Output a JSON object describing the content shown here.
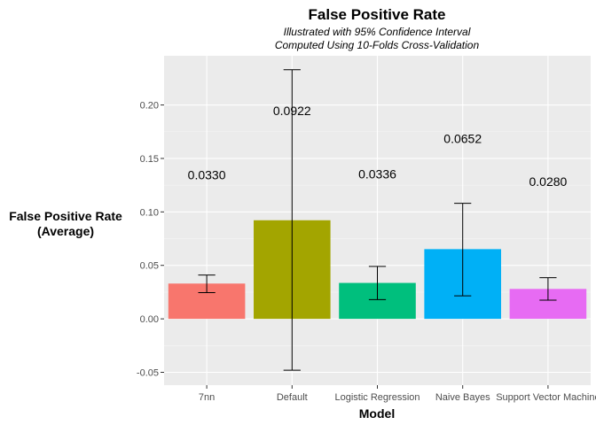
{
  "chart_data": {
    "type": "bar",
    "title": "False Positive Rate",
    "subtitle": [
      "Illustrated with 95% Confidence Interval",
      "Computed Using 10-Folds Cross-Validation"
    ],
    "xlabel": "Model",
    "ylabel": [
      "False Positive Rate",
      "(Average)"
    ],
    "categories": [
      "7nn",
      "Default",
      "Logistic Regression",
      "Naive Bayes",
      "Support Vector Machine"
    ],
    "values": [
      0.033,
      0.0922,
      0.0336,
      0.0652,
      0.028
    ],
    "value_labels": [
      "0.0330",
      "0.0922",
      "0.0336",
      "0.0652",
      "0.0280"
    ],
    "ci_lower": [
      0.0245,
      -0.048,
      0.018,
      0.0215,
      0.0175
    ],
    "ci_upper": [
      0.041,
      0.233,
      0.049,
      0.108,
      0.0385
    ],
    "label_y": [
      0.1345,
      0.1945,
      0.1355,
      0.1685,
      0.1285
    ],
    "colors": [
      "#F8766D",
      "#A3A500",
      "#00BF7D",
      "#00B0F6",
      "#E76BF3"
    ],
    "ylim": [
      -0.062,
      0.246
    ],
    "yticks": [
      -0.05,
      0.0,
      0.05,
      0.1,
      0.15,
      0.2
    ],
    "ytick_labels": [
      "-0.05",
      "0.00",
      "0.05",
      "0.10",
      "0.15",
      "0.20"
    ],
    "grid": true,
    "legend": "none"
  }
}
